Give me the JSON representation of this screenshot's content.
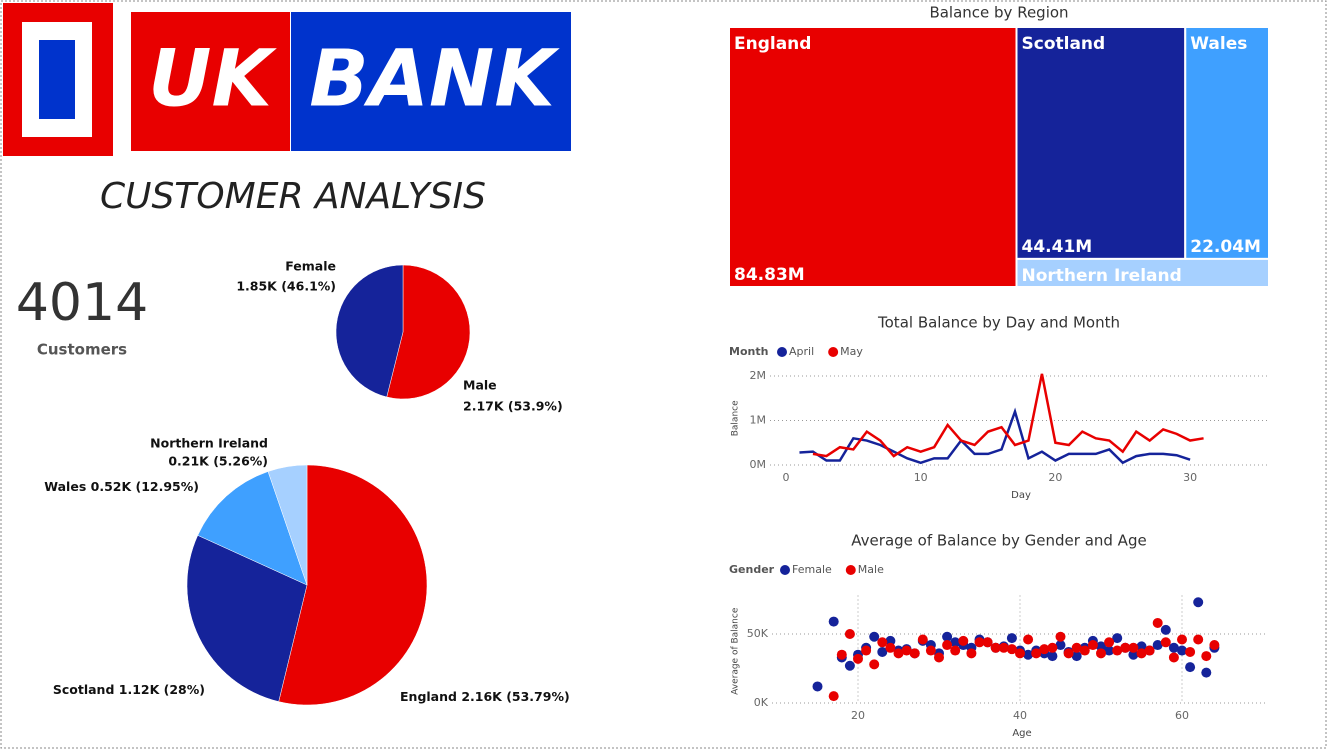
{
  "logo": {
    "left": "UK",
    "right": "BANK"
  },
  "heading": "CUSTOMER ANALYSIS",
  "kpi": {
    "value": 4014,
    "label": "Customers"
  },
  "chart_data": [
    {
      "type": "pie",
      "categories": [
        "Male",
        "Female"
      ],
      "values": [
        53.9,
        46.1
      ],
      "value_labels": [
        "2.17K (53.9%)",
        "1.85K (46.1%)"
      ],
      "colors": [
        "#e80000",
        "#15239a"
      ]
    },
    {
      "type": "pie",
      "categories": [
        "England",
        "Scotland",
        "Wales",
        "Northern Ireland"
      ],
      "values": [
        53.79,
        28,
        12.95,
        5.26
      ],
      "value_labels": [
        "2.16K (53.79%)",
        "1.12K (28%)",
        "0.52K (12.95%)",
        "0.21K (5.26%)"
      ],
      "colors": [
        "#e80000",
        "#15239a",
        "#3fa0ff",
        "#a6d0ff"
      ]
    },
    {
      "type": "treemap",
      "title": "Balance by Region",
      "categories": [
        "England",
        "Scotland",
        "Wales",
        "Northern Ireland"
      ],
      "values": [
        84830000,
        44410000,
        22040000,
        8050000
      ],
      "value_labels": [
        "84.83M",
        "44.41M",
        "22.04M",
        null
      ],
      "colors": [
        "#e80000",
        "#15239a",
        "#3fa0ff",
        "#a6d0ff"
      ]
    },
    {
      "type": "line",
      "title": "Total Balance by Day and Month",
      "legend_title": "Month",
      "x_label": "Day",
      "y_label": "Balance",
      "x": [
        1,
        2,
        3,
        4,
        5,
        6,
        7,
        8,
        9,
        10,
        11,
        12,
        13,
        14,
        15,
        16,
        17,
        18,
        19,
        20,
        21,
        22,
        23,
        24,
        25,
        26,
        27,
        28,
        29,
        30,
        31
      ],
      "xlim": [
        0,
        31
      ],
      "xticks": [
        0,
        10,
        20,
        30
      ],
      "ylim": [
        0,
        2100000
      ],
      "yticks": [
        {
          "value": 0,
          "label": "0M"
        },
        {
          "value": 1000000,
          "label": "1M"
        },
        {
          "value": 2000000,
          "label": "2M"
        }
      ],
      "grid": true,
      "series": [
        {
          "name": "April",
          "color": "#15239a",
          "values": [
            280000,
            300000,
            100000,
            100000,
            600000,
            550000,
            450000,
            300000,
            150000,
            50000,
            150000,
            150000,
            550000,
            250000,
            250000,
            350000,
            1200000,
            150000,
            300000,
            100000,
            250000,
            250000,
            250000,
            350000,
            50000,
            200000,
            250000,
            250000,
            220000,
            120000,
            null
          ]
        },
        {
          "name": "May",
          "color": "#e80000",
          "values": [
            null,
            250000,
            200000,
            400000,
            350000,
            750000,
            550000,
            200000,
            400000,
            300000,
            400000,
            900000,
            550000,
            450000,
            750000,
            850000,
            450000,
            550000,
            2050000,
            500000,
            450000,
            750000,
            600000,
            550000,
            300000,
            750000,
            550000,
            800000,
            700000,
            550000,
            600000
          ]
        }
      ]
    },
    {
      "type": "scatter",
      "title": "Average of Balance by Gender and Age",
      "legend_title": "Gender",
      "x_label": "Age",
      "y_label": "Average of Balance",
      "xlim": [
        12,
        70
      ],
      "xticks": [
        20,
        40,
        60
      ],
      "ylim": [
        0,
        75000
      ],
      "yticks": [
        {
          "value": 0,
          "label": "0K"
        },
        {
          "value": 50000,
          "label": "50K"
        }
      ],
      "grid": true,
      "series": [
        {
          "name": "Female",
          "color": "#15239a",
          "x": [
            15,
            17,
            18,
            19,
            20,
            21,
            22,
            23,
            24,
            25,
            26,
            27,
            28,
            29,
            30,
            31,
            32,
            33,
            34,
            35,
            36,
            37,
            38,
            39,
            40,
            41,
            42,
            43,
            44,
            45,
            46,
            47,
            48,
            49,
            50,
            51,
            52,
            53,
            54,
            55,
            56,
            57,
            58,
            59,
            60,
            61,
            62,
            63,
            64
          ],
          "values": [
            12000,
            59000,
            33000,
            27000,
            35000,
            40000,
            48000,
            37000,
            45000,
            38000,
            39000,
            36000,
            45000,
            42000,
            36000,
            48000,
            44000,
            42000,
            40000,
            46000,
            44000,
            40000,
            41000,
            47000,
            38000,
            35000,
            38000,
            36000,
            34000,
            42000,
            37000,
            34000,
            40000,
            45000,
            41000,
            38000,
            47000,
            40000,
            35000,
            41000,
            38000,
            42000,
            53000,
            40000,
            38000,
            26000,
            73000,
            22000,
            40000
          ]
        },
        {
          "name": "Male",
          "color": "#e80000",
          "x": [
            17,
            18,
            19,
            20,
            21,
            22,
            23,
            24,
            25,
            26,
            27,
            28,
            29,
            30,
            31,
            32,
            33,
            34,
            35,
            36,
            37,
            38,
            39,
            40,
            41,
            42,
            43,
            44,
            45,
            46,
            47,
            48,
            49,
            50,
            51,
            52,
            53,
            54,
            55,
            56,
            57,
            58,
            59,
            60,
            61,
            62,
            63,
            64
          ],
          "values": [
            5000,
            35000,
            50000,
            32000,
            38000,
            28000,
            44000,
            40000,
            36000,
            38000,
            36000,
            46000,
            38000,
            33000,
            42000,
            38000,
            45000,
            36000,
            44000,
            44000,
            40000,
            40000,
            39000,
            36000,
            46000,
            36000,
            39000,
            40000,
            48000,
            36000,
            40000,
            38000,
            42000,
            36000,
            44000,
            38000,
            40000,
            40000,
            36000,
            38000,
            58000,
            44000,
            33000,
            46000,
            37000,
            46000,
            34000,
            42000
          ]
        }
      ]
    }
  ]
}
